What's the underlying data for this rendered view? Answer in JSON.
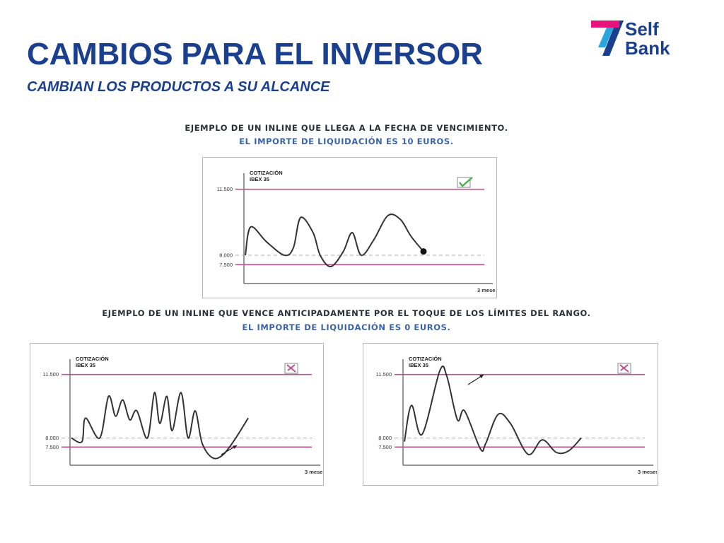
{
  "header": {
    "title": "CAMBIOS PARA EL INVERSOR",
    "subtitle": "CAMBIAN LOS PRODUCTOS A SU ALCANCE"
  },
  "logo": {
    "line1": "Self",
    "line2": "Bank",
    "colors": {
      "magenta": "#e5137b",
      "blue": "#1b3f8f",
      "cyan": "#2aa6df"
    }
  },
  "captions": {
    "top_main": "EJEMPLO DE UN INLINE QUE LLEGA A LA FECHA DE VENCIMIENTO.",
    "top_sub": "EL IMPORTE DE LIQUIDACIÓN ES 10 EUROS.",
    "bottom_main": "EJEMPLO DE UN INLINE QUE VENCE ANTICIPADAMENTE POR EL TOQUE DE LOS LÍMITES DEL RANGO.",
    "bottom_sub": "EL IMPORTE DE LIQUIDACIÓN ES 0 EUROS."
  },
  "colors": {
    "title": "#1b3f8f",
    "limit_line": "#c0508f",
    "reference_line": "#aaaaaa",
    "series": "#333333",
    "check": "#4caf50",
    "cross": "#c0508f"
  },
  "chart_data": [
    {
      "type": "line",
      "ylabel": "COTIZACIÓN IBEX 35",
      "xlabel": "3 meses",
      "y_ticks": [
        "11.500",
        "8.000",
        "7.500"
      ],
      "ylim": [
        6500,
        12500
      ],
      "reference_lines": [
        {
          "label": "11.500",
          "value": 11500,
          "style": "solid"
        },
        {
          "label": "8.000",
          "value": 8000,
          "style": "dashed"
        },
        {
          "label": "7.500",
          "value": 7500,
          "style": "solid"
        }
      ],
      "indicator": "check",
      "end_marker": true,
      "series": [
        {
          "x": [
            0,
            0.03,
            0.12,
            0.22,
            0.27,
            0.31,
            0.38,
            0.42,
            0.48,
            0.55,
            0.6,
            0.65,
            0.72,
            0.8,
            0.87,
            0.93,
            1.0
          ],
          "y": [
            8000,
            9500,
            8700,
            8000,
            8400,
            10000,
            9200,
            8000,
            7400,
            8200,
            9200,
            8000,
            8800,
            10100,
            9900,
            9000,
            8200
          ]
        }
      ]
    },
    {
      "type": "line",
      "ylabel": "COTIZACIÓN IBEX 35",
      "xlabel": "3 meses",
      "y_ticks": [
        "11.500",
        "8.000",
        "7.500"
      ],
      "ylim": [
        6500,
        12500
      ],
      "reference_lines": [
        {
          "label": "11.500",
          "value": 11500,
          "style": "solid"
        },
        {
          "label": "8.000",
          "value": 8000,
          "style": "dashed"
        },
        {
          "label": "7.500",
          "value": 7500,
          "style": "solid"
        }
      ],
      "indicator": "cross",
      "series": [
        {
          "x": [
            0,
            0.06,
            0.08,
            0.16,
            0.21,
            0.25,
            0.29,
            0.33,
            0.37,
            0.43,
            0.47,
            0.5,
            0.54,
            0.57,
            0.62,
            0.66,
            0.7,
            0.74,
            0.8,
            0.86,
            0.93,
            1.0
          ],
          "y": [
            8000,
            7800,
            9100,
            8000,
            10300,
            9200,
            10100,
            9000,
            9500,
            8000,
            10500,
            8800,
            10300,
            8400,
            10500,
            8000,
            9500,
            7700,
            6900,
            7100,
            8000,
            9100
          ]
        }
      ]
    },
    {
      "type": "line",
      "ylabel": "COTIZACIÓN IBEX 35",
      "xlabel": "3 meses",
      "y_ticks": [
        "11.500",
        "8.000",
        "7.500"
      ],
      "ylim": [
        6500,
        12500
      ],
      "reference_lines": [
        {
          "label": "11.500",
          "value": 11500,
          "style": "solid"
        },
        {
          "label": "8.000",
          "value": 8000,
          "style": "dashed"
        },
        {
          "label": "7.500",
          "value": 7500,
          "style": "solid"
        }
      ],
      "indicator": "cross",
      "series": [
        {
          "x": [
            0,
            0.04,
            0.1,
            0.2,
            0.24,
            0.3,
            0.34,
            0.43,
            0.46,
            0.53,
            0.6,
            0.7,
            0.78,
            0.86,
            0.93,
            1.0
          ],
          "y": [
            7800,
            9800,
            8200,
            11700,
            11400,
            9000,
            9500,
            7400,
            7700,
            9300,
            8800,
            7100,
            7900,
            7200,
            7300,
            8000
          ]
        }
      ]
    }
  ]
}
